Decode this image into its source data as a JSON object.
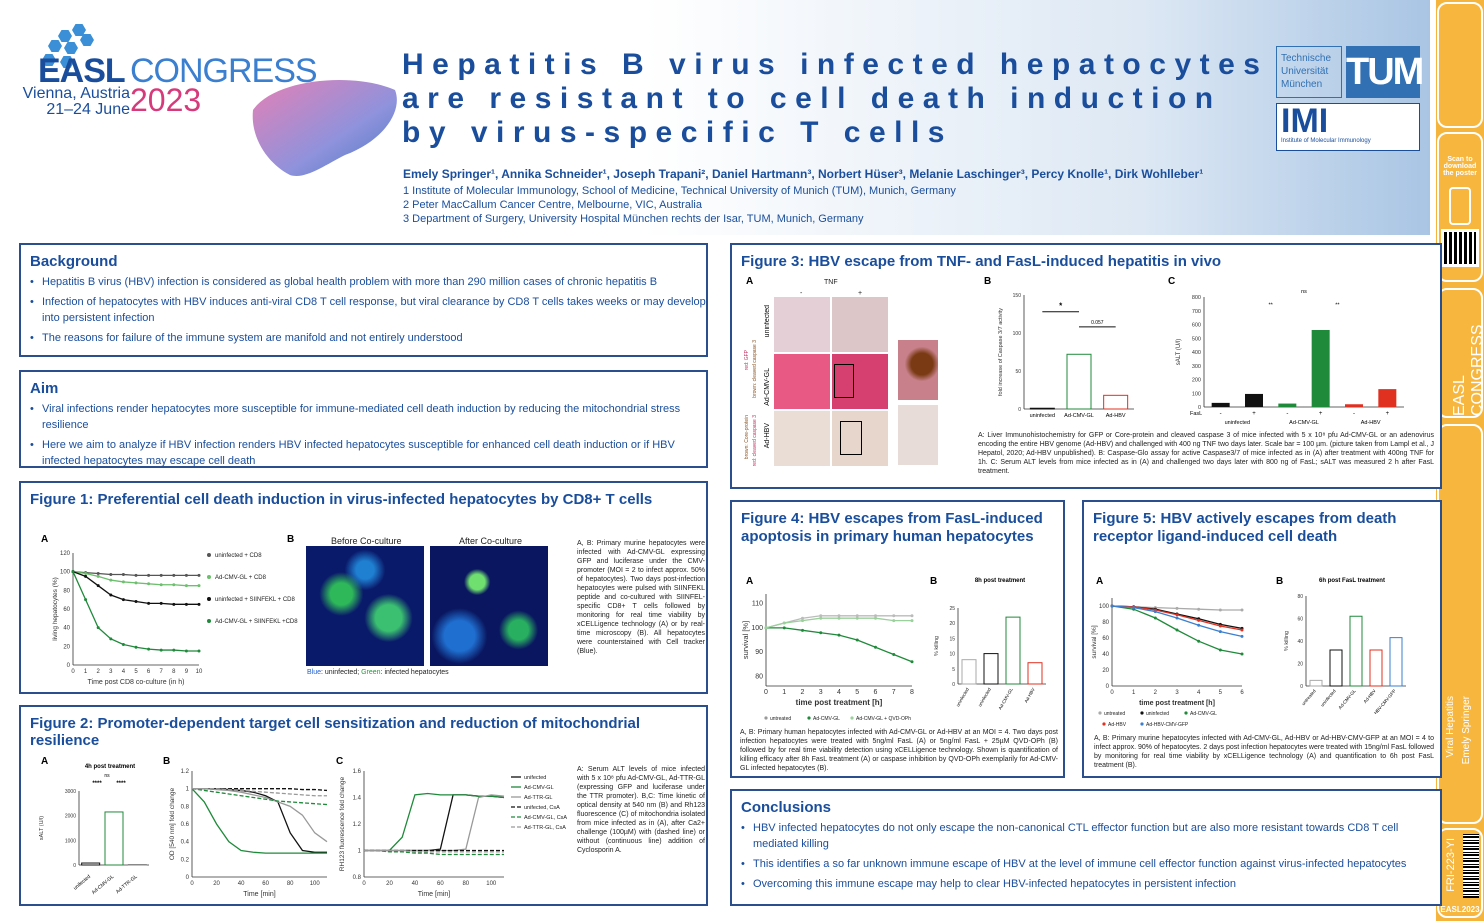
{
  "header": {
    "congress": {
      "brand": "EASL",
      "word": "CONGRESS",
      "city": "Vienna, Austria",
      "dates": "21–24 June",
      "year": "2023"
    },
    "title_lines": [
      "Hepatitis B virus infected hepatocytes",
      "are resistant to cell death induction",
      "by virus-specific T cells"
    ],
    "authors": "Emely Springer¹, Annika Schneider¹, Joseph Trapani², Daniel Hartmann³, Norbert Hüser³, Melanie Laschinger³, Percy Knolle¹, Dirk Wohlleber¹",
    "affiliations": [
      "1 Institute of Molecular Immunology, School of Medicine, Technical University of Munich (TUM), Munich, Germany",
      "2 Peter MacCallum Cancer Centre, Melbourne, VIC, Australia",
      "3 Department of Surgery, University Hospital München rechts der Isar, TUM, Munich, Germany"
    ],
    "tum_text": [
      "Technische",
      "Universität",
      "München"
    ],
    "tum_logo": "TUM",
    "imi_logo": "IMI",
    "imi_text": "Institute of Molecular Immunology"
  },
  "sidebar": {
    "scan": "Scan to download the poster",
    "congress": "EASL CONGRESS",
    "year": "2023",
    "city": "Vienna, Austria",
    "topic": "Viral Hepatitis",
    "author": "Emely Springer",
    "code": "FRI-223-YI",
    "tag": "EASL2023"
  },
  "background": {
    "heading": "Background",
    "items": [
      "Hepatitis B virus (HBV) infection is considered as global health problem with more than 290 million cases of chronic hepatitis B",
      "Infection of hepatocytes with HBV induces anti-viral CD8 T cell response, but viral clearance by CD8 T cells takes weeks or may develop into persistent infection",
      "The reasons for failure of the immune system are manifold and not entirely understood"
    ]
  },
  "aim": {
    "heading": "Aim",
    "items": [
      "Viral infections render hepatocytes more susceptible for immune-mediated cell death induction by reducing the mitochondrial stress resilience",
      "Here we aim to analyze if HBV infection renders HBV infected hepatocytes susceptible for enhanced cell death induction or if HBV infected hepatocytes may escape cell death"
    ]
  },
  "fig1": {
    "heading": "Figure 1: Preferential cell death induction in virus-infected hepatocytes by CD8+ T cells",
    "panelA": "A",
    "panelB": "B",
    "ylabel": "living hepatocytes (%)",
    "xlabel": "Time post CD8 co-culture (in h)",
    "legend": [
      "uninfected + CD8",
      "Ad-CMV-GL + CD8",
      "uninfected + SIINFEKL + CD8",
      "Ad-CMV-GL + SIINFEKL +CD8"
    ],
    "img_titles": [
      "Before Co-culture",
      "After Co-culture"
    ],
    "img_caption_blue": "Blue",
    "img_caption_rest": ": uninfected; ",
    "img_caption_green": "Green",
    "img_caption_end": ": infected hepatocytes",
    "caption": "A, B: Primary murine hepatocytes were infected with Ad-CMV-GL expressing GFP and luciferase under the CMV-promoter (MOI = 2 to infect approx. 50% of hepatocytes). Two days post-infection hepatocytes were pulsed with SIINFEKL peptide and co-cultured with SIINFEL-specific CD8+ T cells followed by monitoring for real time viability by xCELLigence technology (A) or by real-time microscopy (B). All hepatocytes were counterstained with Cell tracker (Blue)."
  },
  "fig2": {
    "heading": "Figure 2: Promoter-dependent target cell sensitization and reduction of mitochondrial resilience",
    "panelA": "A",
    "panelB": "B",
    "panelC": "C",
    "a_title": "4h post treatment",
    "a_ylabel": "sALT (U/l)",
    "a_cats": [
      "unifected",
      "Ad-CMV-GL",
      "Ad-TTR-GL"
    ],
    "sig": "****",
    "ns": "ns",
    "b_ylabel": "OD [540 nm] fold change",
    "b_xlabel": "Time [min]",
    "c_ylabel": "RH123 fluorescence fold change",
    "c_xlabel": "Time [min]",
    "legend": [
      "unifected",
      "Ad-CMV-GL",
      "Ad-TTR-GL",
      "unifected, CsA",
      "Ad-CMV-GL, CsA",
      "Ad-TTR-GL, CsA"
    ],
    "caption": "A: Serum ALT levels of mice infected with 5 x 10⁸ pfu Ad-CMV-GL, Ad-TTR-GL (expressing GFP and luciferase under the TTR promoter). B,C: Time kinetic of optical density at 540 nm (B) and Rh123 fluorescence (C) of mitochondria isolated from mice infected as in (A), after Ca2+ challenge (100µM) with (dashed line) or without (continuous line) addition of Cyclosporin A."
  },
  "fig3": {
    "heading": "Figure 3: HBV escape from TNF- and FasL-induced hepatitis in vivo",
    "panelA": "A",
    "panelB": "B",
    "panelC": "C",
    "tnf": "TNF",
    "minus": "-",
    "plus": "+",
    "rows": [
      "uninfected",
      "Ad-CMV-GL",
      "Ad-HBV"
    ],
    "row_notes": [
      "red: GFP",
      "brown: cleaved caspase 3",
      "brown: Core-protein",
      "red: cleaved caspase 3"
    ],
    "b_ylabel": "fold increase of Caspase 3/7 activity",
    "b_cats": [
      "uninfected",
      "Ad-CMV-GL",
      "Ad-HBV"
    ],
    "b_sig": "*",
    "b_p": "0.057",
    "c_ylabel": "sALT (U/l)",
    "c_fasl": "FasL",
    "c_groups": [
      "uninfected",
      "Ad-CMV-GL",
      "Ad-HBV"
    ],
    "c_sig": "**",
    "caption": "A: Liver Immunohistochemistry for GFP or Core-protein and cleaved caspase 3 of mice infected with 5 x 10⁸ pfu Ad-CMV-GL or an adenovirus encoding the entire HBV genome (Ad-HBV) and challenged with 400 ng TNF two days later. Scale bar = 100 µm. (picture taken from Lampl et al., J Hepatol, 2020; Ad-HBV unpublished). B: Caspase-Glo assay for active Caspase3/7 of mice infected as in (A) after treatment with 400ng TNF for 1h. C: Serum ALT levels from mice infected as in (A) and challenged two days later with 800 ng of FasL; sALT was measured 2 h after FasL treatment."
  },
  "fig4": {
    "heading": "Figure 4: HBV escapes from FasL-induced apoptosis in primary human hepatocytes",
    "panelA": "A",
    "panelB": "B",
    "ylabel": "survival [%]",
    "xlabel": "time post treatment [h]",
    "b_title": "8h post treatment",
    "b_ylabel": "% killing",
    "b_cats": [
      "uninfected",
      "uninfected",
      "Ad-CMV-GL",
      "Ad-HBV"
    ],
    "legend": [
      "untreated",
      "Ad-CMV-GL",
      "Ad-CMV-GL + QVD-OPh"
    ],
    "caption": "A, B: Primary human hepatocytes infected with Ad-CMV-GL or Ad-HBV at an MOI = 4. Two days post infection hepatocytes were treated with 5ng/ml FasL (A) or 5ng/ml FasL + 25µM QVD-OPh (B) followed by for real time viability detection using xCELLigence technology. Shown is quantification of killing efficacy after 8h FasL treatment (A) or caspase inhibition by QVD-OPh exemplarily for Ad-CMV-GL infected hepatocytes (B)."
  },
  "fig5": {
    "heading": "Figure 5: HBV actively escapes from death receptor ligand-induced cell death",
    "panelA": "A",
    "panelB": "B",
    "ylabel": "survival [%]",
    "xlabel": "time post treatment [h]",
    "b_title": "6h post FasL treatment",
    "b_ylabel": "% killing",
    "b_cats": [
      "untreated",
      "uninfected",
      "Ad-CMV-GL",
      "Ad-HBV",
      "Ad-HBV-CMV-GFP"
    ],
    "legend": [
      "untreated",
      "uninfected",
      "Ad-CMV-GL",
      "Ad-HBV",
      "Ad-HBV-CMV-GFP"
    ],
    "caption": "A, B: Primary murine hepatocytes infected with Ad-CMV-GL, Ad-HBV or Ad-HBV-CMV-GFP at an MOI = 4 to infect approx. 90% of hepatocytes. 2 days post infection hepatocytes were treated with 15ng/ml FasL followed by monitoring for real time viability by xCELLigence technology (A) and quantification to 6h post FasL treatment (B)."
  },
  "conclusions": {
    "heading": "Conclusions",
    "items": [
      "HBV infected hepatocytes do not only escape the non-canonical CTL effector function but are also more resistant towards CD8 T cell mediated killing",
      "This identifies a so far unknown immune escape of HBV at the level of immune cell effector function against virus-infected hepatocytes",
      "Overcoming this immune escape may help to clear HBV-infected hepatocytes in persistent infection"
    ]
  },
  "colors": {
    "navy": "#1a4e9c",
    "border": "#2b4f8c",
    "green": "#1f8a3a",
    "red": "#e03020",
    "black": "#111111",
    "orange": "#f5b43c"
  },
  "chart_data": [
    {
      "id": "fig1A",
      "type": "line",
      "x": [
        0,
        1,
        2,
        3,
        4,
        5,
        6,
        7,
        8,
        9,
        10
      ],
      "xlim": [
        0,
        10
      ],
      "ylim": [
        0,
        120
      ],
      "series": [
        {
          "name": "uninfected + CD8",
          "values": [
            100,
            99,
            98,
            97,
            97,
            96,
            96,
            96,
            96,
            96,
            96
          ]
        },
        {
          "name": "Ad-CMV-GL + CD8",
          "values": [
            100,
            98,
            95,
            91,
            89,
            88,
            87,
            86,
            86,
            85,
            85
          ]
        },
        {
          "name": "uninfected + SIINFEKL + CD8",
          "values": [
            100,
            95,
            85,
            75,
            70,
            68,
            66,
            66,
            65,
            65,
            65
          ]
        },
        {
          "name": "Ad-CMV-GL + SIINFEKL +CD8",
          "values": [
            100,
            70,
            40,
            28,
            22,
            19,
            17,
            16,
            16,
            15,
            15
          ]
        }
      ]
    },
    {
      "id": "fig2A",
      "type": "bar",
      "categories": [
        "unifected",
        "Ad-CMV-GL",
        "Ad-TTR-GL"
      ],
      "values": [
        80,
        2150,
        20
      ],
      "ylim": [
        0,
        3000
      ]
    },
    {
      "id": "fig2B",
      "type": "line",
      "x": [
        0,
        10,
        20,
        30,
        40,
        50,
        60,
        70,
        80,
        90,
        100,
        110
      ],
      "xlim": [
        0,
        110
      ],
      "ylim": [
        0,
        1.2
      ],
      "series": [
        {
          "name": "unifected",
          "values": [
            1,
            1,
            1,
            0.99,
            0.98,
            0.96,
            0.92,
            0.85,
            0.5,
            0.3,
            0.28,
            0.28
          ]
        },
        {
          "name": "Ad-CMV-GL",
          "values": [
            1,
            0.85,
            0.6,
            0.4,
            0.3,
            0.28,
            0.27,
            0.27,
            0.27,
            0.27,
            0.27,
            0.27
          ]
        },
        {
          "name": "Ad-TTR-GL",
          "values": [
            1,
            1,
            0.99,
            0.98,
            0.96,
            0.93,
            0.9,
            0.85,
            0.8,
            0.7,
            0.5,
            0.4
          ]
        },
        {
          "name": "unifected, CsA",
          "values": [
            1,
            1,
            1,
            1,
            1,
            1,
            1,
            1,
            1,
            0.99,
            0.99,
            0.98
          ]
        },
        {
          "name": "Ad-CMV-GL, CsA",
          "values": [
            1,
            0.98,
            0.96,
            0.94,
            0.92,
            0.9,
            0.88,
            0.86,
            0.85,
            0.84,
            0.83,
            0.82
          ]
        },
        {
          "name": "Ad-TTR-GL, CsA",
          "values": [
            1,
            1,
            1,
            0.99,
            0.98,
            0.97,
            0.96,
            0.95,
            0.94,
            0.93,
            0.92,
            0.92
          ]
        }
      ]
    },
    {
      "id": "fig2C",
      "type": "line",
      "x": [
        0,
        10,
        20,
        30,
        40,
        50,
        60,
        70,
        80,
        90,
        100,
        110
      ],
      "xlim": [
        0,
        110
      ],
      "ylim": [
        0.8,
        1.6
      ],
      "series": [
        {
          "name": "unifected",
          "values": [
            1,
            1,
            1,
            1,
            1,
            1,
            1.01,
            1.42,
            1.42,
            1.41,
            1.41,
            1.4
          ]
        },
        {
          "name": "Ad-CMV-GL",
          "values": [
            1,
            1,
            1,
            1.1,
            1.42,
            1.43,
            1.42,
            1.42,
            1.42,
            1.41,
            1.41,
            1.4
          ]
        },
        {
          "name": "Ad-TTR-GL",
          "values": [
            1,
            1,
            1,
            1,
            1,
            1,
            1,
            1,
            1.01,
            1.4,
            1.42,
            1.41
          ]
        },
        {
          "name": "unifected, CsA",
          "values": [
            1,
            1,
            1,
            1,
            1,
            1,
            1,
            1,
            1,
            1,
            1,
            1
          ]
        },
        {
          "name": "Ad-CMV-GL, CsA",
          "values": [
            1,
            1,
            0.99,
            0.99,
            0.98,
            0.98,
            0.97,
            0.97,
            0.97,
            0.97,
            0.97,
            0.97
          ]
        },
        {
          "name": "Ad-TTR-GL, CsA",
          "values": [
            1,
            1,
            1,
            1,
            0.99,
            0.99,
            0.99,
            0.99,
            0.99,
            0.99,
            0.99,
            0.99
          ]
        }
      ]
    },
    {
      "id": "fig3B",
      "type": "bar",
      "categories": [
        "uninfected",
        "Ad-CMV-GL",
        "Ad-HBV"
      ],
      "values": [
        1,
        72,
        18
      ],
      "ylim": [
        0,
        150
      ]
    },
    {
      "id": "fig3C",
      "type": "bar",
      "categories": [
        "uninfected -",
        "uninfected +",
        "Ad-CMV-GL -",
        "Ad-CMV-GL +",
        "Ad-HBV -",
        "Ad-HBV +"
      ],
      "values": [
        30,
        95,
        25,
        560,
        20,
        130
      ],
      "ylim": [
        0,
        800
      ]
    },
    {
      "id": "fig4A",
      "type": "line",
      "x": [
        0,
        1,
        2,
        3,
        4,
        5,
        6,
        7,
        8
      ],
      "xlim": [
        0,
        8
      ],
      "ylim": [
        75,
        115
      ],
      "series": [
        {
          "name": "untreated",
          "values": [
            100,
            102,
            104,
            105,
            105,
            105,
            105,
            105,
            105
          ]
        },
        {
          "name": "Ad-CMV-GL",
          "values": [
            100,
            100,
            99,
            98,
            97,
            95,
            92,
            89,
            86
          ]
        },
        {
          "name": "Ad-CMV-GL + QVD-OPh",
          "values": [
            100,
            102,
            103,
            104,
            104,
            104,
            104,
            103,
            103
          ]
        }
      ]
    },
    {
      "id": "fig4B",
      "type": "bar",
      "categories": [
        "uninfected",
        "uninfected",
        "Ad-CMV-GL",
        "Ad-HBV"
      ],
      "values": [
        8,
        10,
        22,
        7
      ],
      "ylim": [
        0,
        25
      ]
    },
    {
      "id": "fig5A",
      "type": "line",
      "x": [
        0,
        1,
        2,
        3,
        4,
        5,
        6
      ],
      "xlim": [
        0,
        6
      ],
      "ylim": [
        0,
        110
      ],
      "series": [
        {
          "name": "untreated",
          "values": [
            100,
            99,
            98,
            97,
            96,
            95,
            95
          ]
        },
        {
          "name": "uninfected",
          "values": [
            100,
            99,
            96,
            90,
            84,
            77,
            72
          ]
        },
        {
          "name": "Ad-CMV-GL",
          "values": [
            100,
            96,
            85,
            70,
            56,
            45,
            40
          ]
        },
        {
          "name": "Ad-HBV",
          "values": [
            100,
            99,
            95,
            89,
            82,
            75,
            70
          ]
        },
        {
          "name": "Ad-HBV-CMV-GFP",
          "values": [
            100,
            98,
            93,
            85,
            76,
            68,
            62
          ]
        }
      ]
    },
    {
      "id": "fig5B",
      "type": "bar",
      "categories": [
        "untreated",
        "uninfected",
        "Ad-CMV-GL",
        "Ad-HBV",
        "Ad-HBV-CMV-GFP"
      ],
      "values": [
        5,
        32,
        62,
        32,
        43
      ],
      "ylim": [
        0,
        80
      ]
    }
  ]
}
